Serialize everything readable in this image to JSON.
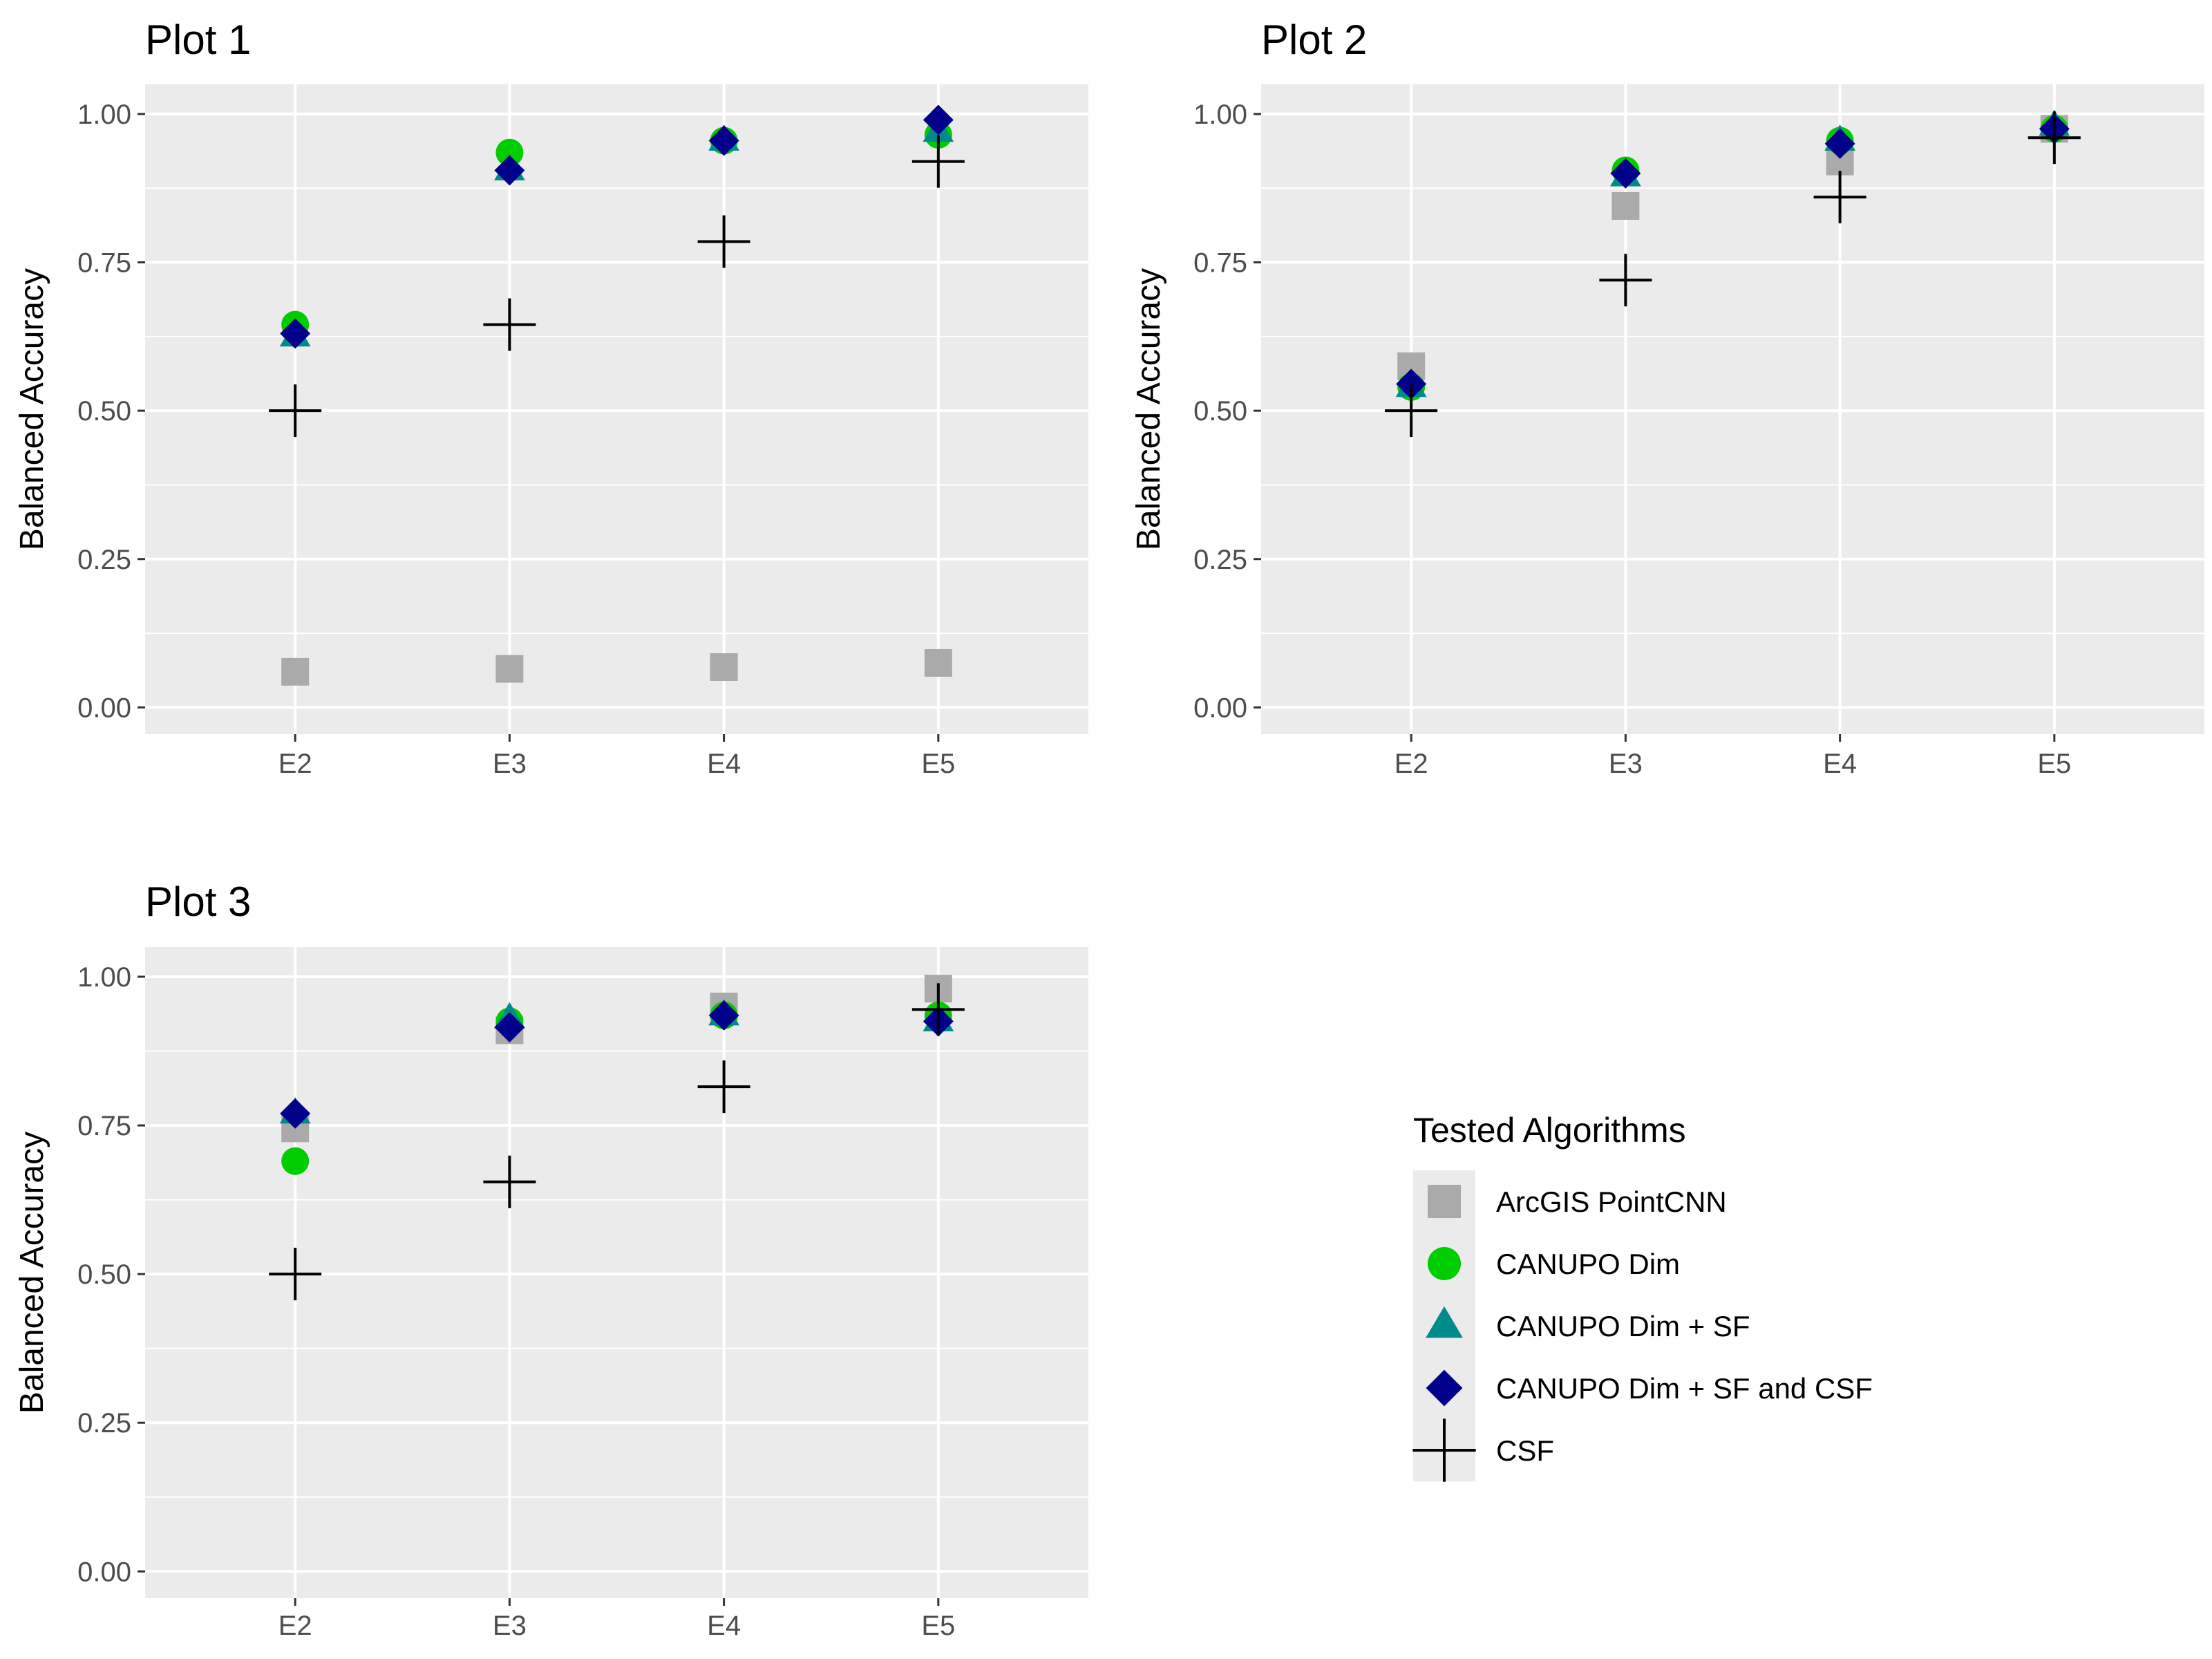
{
  "chart_data": [
    {
      "type": "scatter",
      "title": "Plot 1",
      "xlabel": "",
      "ylabel": "Balanced Accuracy",
      "categories": [
        "E2",
        "E3",
        "E4",
        "E5"
      ],
      "ylim": [
        0,
        1
      ],
      "yticks": [
        "0.00",
        "0.25",
        "0.50",
        "0.75",
        "1.00"
      ],
      "series": [
        {
          "name": "ArcGIS PointCNN",
          "values": [
            0.06,
            0.065,
            0.068,
            0.075
          ]
        },
        {
          "name": "CANUPO Dim",
          "values": [
            0.645,
            0.935,
            0.955,
            0.965
          ]
        },
        {
          "name": "CANUPO Dim + SF",
          "values": [
            0.625,
            0.905,
            0.955,
            0.97
          ]
        },
        {
          "name": "CANUPO Dim + SF and CSF",
          "values": [
            0.63,
            0.905,
            0.955,
            0.99
          ]
        },
        {
          "name": "CSF",
          "values": [
            0.5,
            0.645,
            0.785,
            0.92
          ]
        }
      ]
    },
    {
      "type": "scatter",
      "title": "Plot 2",
      "xlabel": "",
      "ylabel": "Balanced Accuracy",
      "categories": [
        "E2",
        "E3",
        "E4",
        "E5"
      ],
      "ylim": [
        0,
        1
      ],
      "yticks": [
        "0.00",
        "0.25",
        "0.50",
        "0.75",
        "1.00"
      ],
      "series": [
        {
          "name": "ArcGIS PointCNN",
          "values": [
            0.575,
            0.845,
            0.92,
            0.975
          ]
        },
        {
          "name": "CANUPO Dim",
          "values": [
            0.54,
            0.905,
            0.955,
            0.975
          ]
        },
        {
          "name": "CANUPO Dim + SF",
          "values": [
            0.54,
            0.895,
            0.955,
            0.98
          ]
        },
        {
          "name": "CANUPO Dim + SF and CSF",
          "values": [
            0.545,
            0.9,
            0.95,
            0.975
          ]
        },
        {
          "name": "CSF",
          "values": [
            0.5,
            0.72,
            0.86,
            0.96
          ]
        }
      ]
    },
    {
      "type": "scatter",
      "title": "Plot 3",
      "xlabel": "",
      "ylabel": "Balanced Accuracy",
      "categories": [
        "E2",
        "E3",
        "E4",
        "E5"
      ],
      "ylim": [
        0,
        1
      ],
      "yticks": [
        "0.00",
        "0.25",
        "0.50",
        "0.75",
        "1.00"
      ],
      "series": [
        {
          "name": "ArcGIS PointCNN",
          "values": [
            0.745,
            0.91,
            0.95,
            0.98
          ]
        },
        {
          "name": "CANUPO Dim",
          "values": [
            0.69,
            0.925,
            0.935,
            0.935
          ]
        },
        {
          "name": "CANUPO Dim + SF",
          "values": [
            0.77,
            0.93,
            0.935,
            0.925
          ]
        },
        {
          "name": "CANUPO Dim + SF and CSF",
          "values": [
            0.77,
            0.915,
            0.935,
            0.925
          ]
        },
        {
          "name": "CSF",
          "values": [
            0.5,
            0.655,
            0.815,
            0.945
          ]
        }
      ]
    }
  ],
  "legend": {
    "title": "Tested Algorithms",
    "entries": [
      {
        "label": "ArcGIS PointCNN",
        "shape": "square",
        "color": "#aaaaaa"
      },
      {
        "label": "CANUPO Dim",
        "shape": "circle",
        "color": "#00cd00"
      },
      {
        "label": "CANUPO Dim + SF",
        "shape": "triangle",
        "color": "#008b8b"
      },
      {
        "label": "CANUPO Dim + SF and CSF",
        "shape": "diamond",
        "color": "#00008b"
      },
      {
        "label": "CSF",
        "shape": "cross",
        "color": "#000000"
      }
    ]
  },
  "colors": {
    "panel_background": "#ebebeb",
    "grid": "#ffffff",
    "tick_text": "#4d4d4d"
  }
}
